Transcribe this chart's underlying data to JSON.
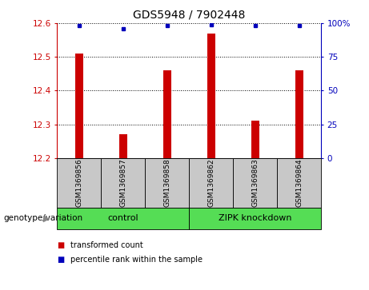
{
  "title": "GDS5948 / 7902448",
  "samples": [
    "GSM1369856",
    "GSM1369857",
    "GSM1369858",
    "GSM1369862",
    "GSM1369863",
    "GSM1369864"
  ],
  "red_values": [
    12.51,
    12.27,
    12.46,
    12.57,
    12.31,
    12.46
  ],
  "blue_values": [
    98,
    96,
    98,
    99,
    98,
    98
  ],
  "ylim_left": [
    12.2,
    12.6
  ],
  "ylim_right": [
    0,
    100
  ],
  "yticks_left": [
    12.2,
    12.3,
    12.4,
    12.5,
    12.6
  ],
  "yticks_right": [
    0,
    25,
    50,
    75,
    100
  ],
  "legend_red": "transformed count",
  "legend_blue": "percentile rank within the sample",
  "bar_color": "#cc0000",
  "dot_color": "#0000bb",
  "bg_color": "#c8c8c8",
  "group_box_color": "#55dd55",
  "right_axis_color": "#0000bb",
  "left_axis_color": "#cc0000",
  "group1_label": "control",
  "group2_label": "ZIPK knockdown",
  "genotype_label": "genotype/variation"
}
